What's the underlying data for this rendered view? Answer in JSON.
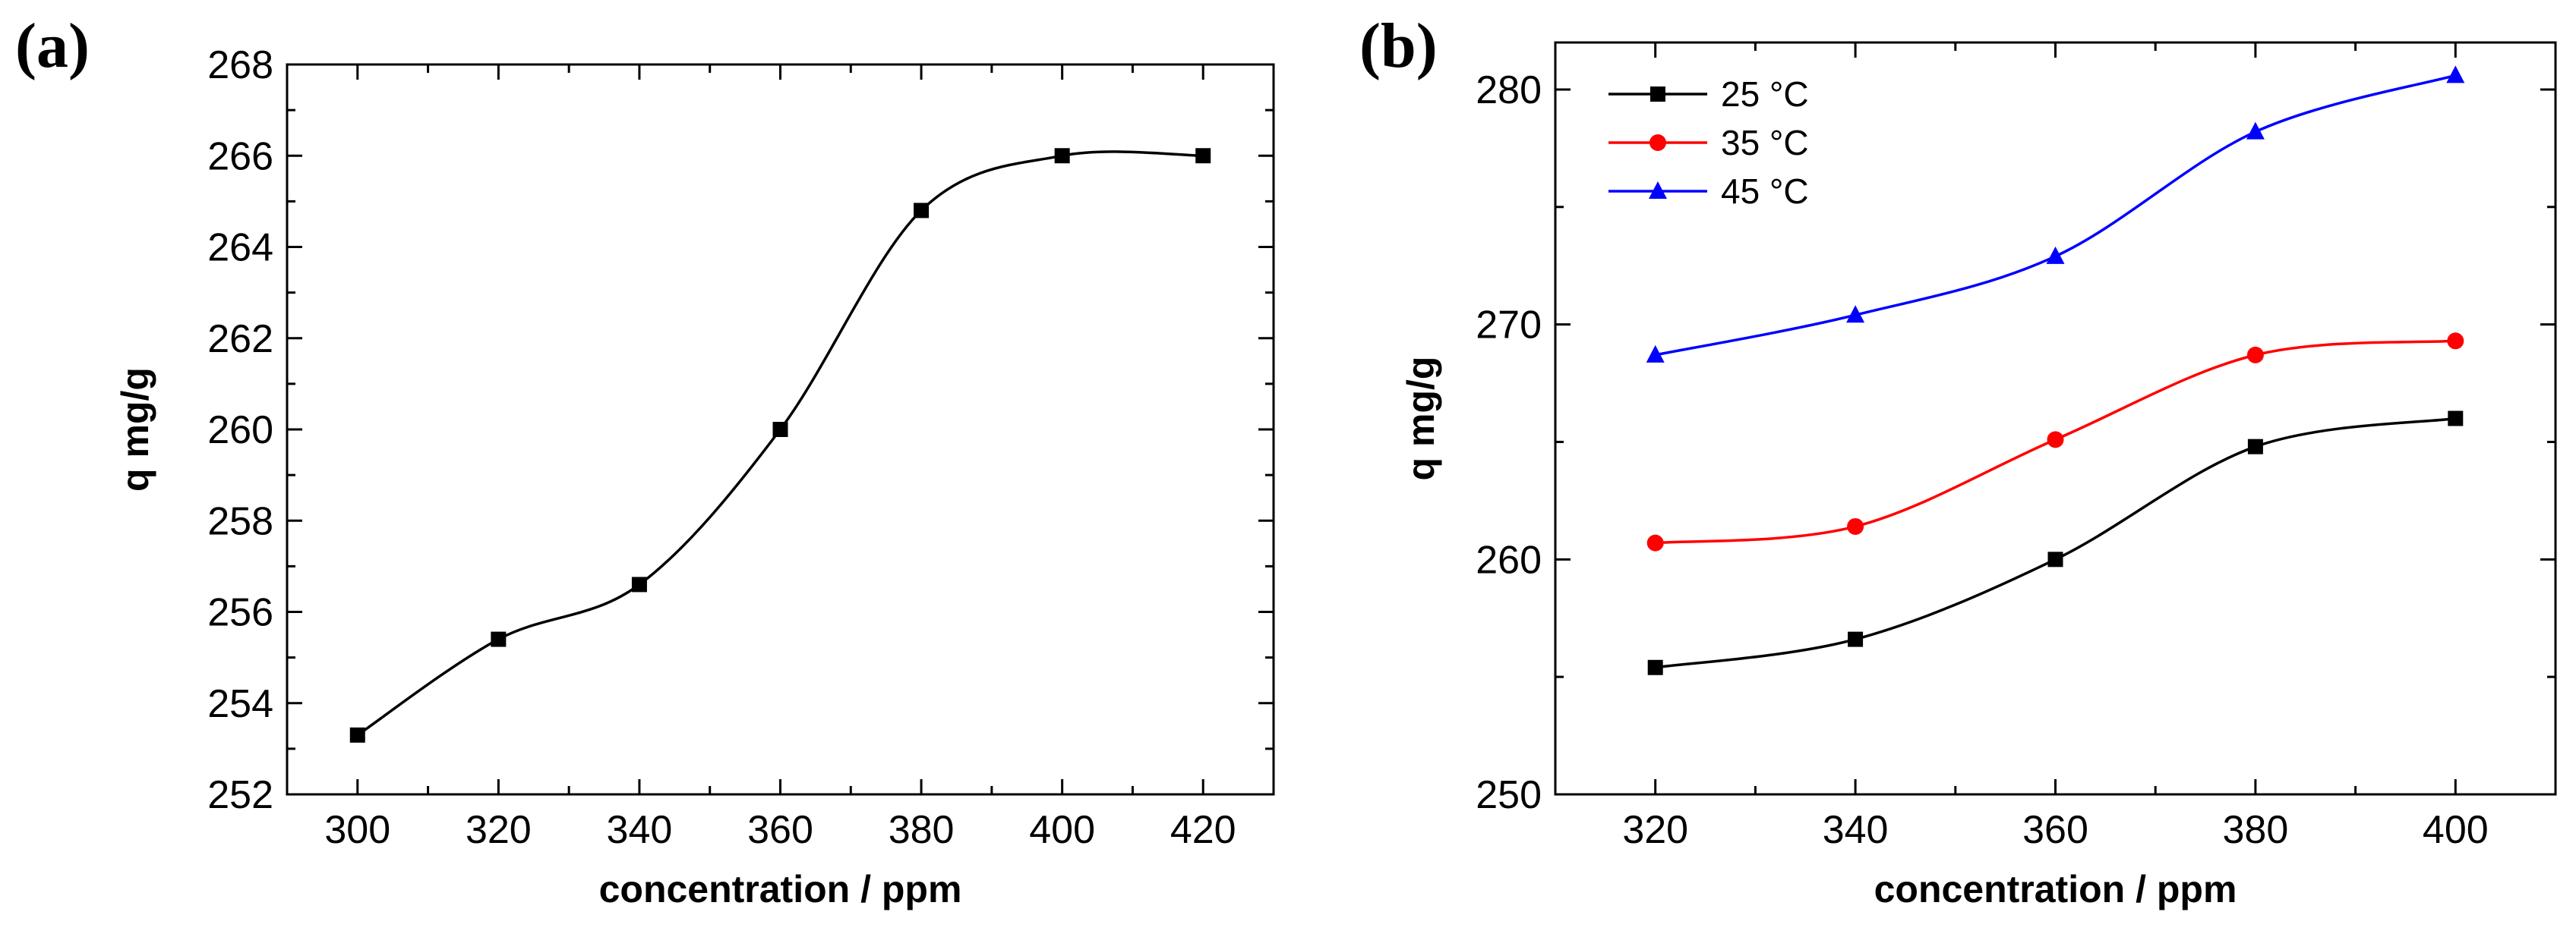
{
  "colors": {
    "axis": "#000000",
    "series_black": "#000000",
    "series_red": "#ff0000",
    "series_blue": "#0000ff"
  },
  "chart_data": [
    {
      "panel_label": "(a)",
      "type": "line",
      "title": "",
      "xlabel": "concentration / ppm",
      "ylabel": "q  mg/g",
      "xlim": [
        290,
        430
      ],
      "ylim": [
        252,
        268
      ],
      "xticks": [
        300,
        320,
        340,
        360,
        380,
        400,
        420
      ],
      "yticks": [
        252,
        254,
        256,
        258,
        260,
        262,
        264,
        266,
        268
      ],
      "xtick_labels": [
        "300",
        "320",
        "340",
        "360",
        "380",
        "400",
        "420"
      ],
      "ytick_labels": [
        "252",
        "254",
        "256",
        "258",
        "260",
        "262",
        "264",
        "266",
        "268"
      ],
      "series": [
        {
          "name": "",
          "marker": "square",
          "color": "#000000",
          "x": [
            300,
            320,
            340,
            360,
            380,
            400,
            420
          ],
          "y": [
            253.3,
            255.4,
            256.6,
            260.0,
            264.8,
            266.0,
            266.0
          ]
        }
      ]
    },
    {
      "panel_label": "(b)",
      "type": "line",
      "title": "",
      "xlabel": "concentration / ppm",
      "ylabel": "q  mg/g",
      "xlim": [
        310,
        410
      ],
      "ylim": [
        250,
        282
      ],
      "xticks": [
        320,
        340,
        360,
        380,
        400
      ],
      "yticks": [
        250,
        260,
        270,
        280
      ],
      "xtick_labels": [
        "320",
        "340",
        "360",
        "380",
        "400"
      ],
      "ytick_labels": [
        "250",
        "260",
        "270",
        "280"
      ],
      "legend": "top-left",
      "series": [
        {
          "name": "25 °C",
          "marker": "square",
          "color": "#000000",
          "x": [
            320,
            340,
            360,
            380,
            400
          ],
          "y": [
            255.4,
            256.6,
            260.0,
            264.8,
            266.0
          ]
        },
        {
          "name": "35 °C",
          "marker": "circle",
          "color": "#ff0000",
          "x": [
            320,
            340,
            360,
            380,
            400
          ],
          "y": [
            260.7,
            261.4,
            265.1,
            268.7,
            269.3
          ]
        },
        {
          "name": "45 °C",
          "marker": "triangle",
          "color": "#0000ff",
          "x": [
            320,
            340,
            360,
            380,
            400
          ],
          "y": [
            268.7,
            270.4,
            272.9,
            278.2,
            280.6
          ]
        }
      ]
    }
  ]
}
